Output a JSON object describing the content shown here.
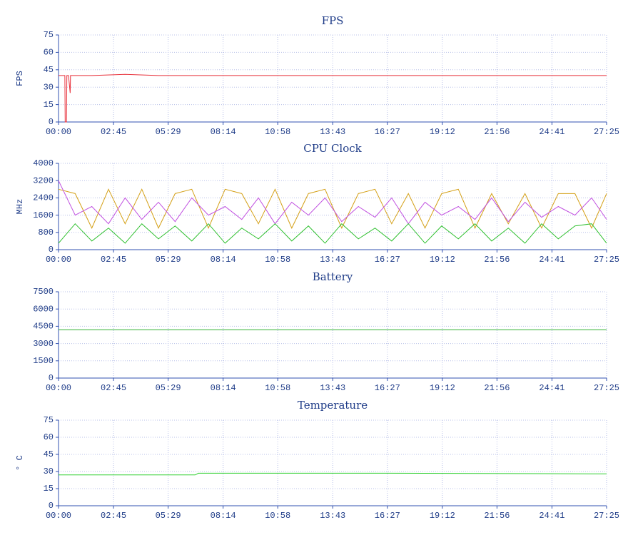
{
  "chart_data": [
    {
      "type": "line",
      "title": "FPS",
      "y_label": "FPS",
      "x": [
        0,
        15,
        19,
        20,
        24,
        25,
        30,
        35,
        36,
        40,
        45,
        100,
        200,
        300,
        400,
        500,
        600,
        700,
        800,
        900,
        1000,
        1100,
        1200,
        1300,
        1400,
        1500,
        1600,
        1645
      ],
      "series": [
        {
          "color": "#e8303a",
          "values": [
            40,
            40,
            40,
            0,
            0,
            40,
            40,
            25,
            40,
            40,
            40,
            40,
            41,
            40,
            40,
            40,
            40,
            40,
            40,
            40,
            40,
            40,
            40,
            40,
            40,
            40,
            40,
            40
          ]
        }
      ],
      "xlim": [
        0,
        1645
      ],
      "xticks": [
        {
          "value": 0,
          "label": "00:00"
        },
        {
          "value": 165,
          "label": "02:45"
        },
        {
          "value": 329,
          "label": "05:29"
        },
        {
          "value": 494,
          "label": "08:14"
        },
        {
          "value": 658,
          "label": "10:58"
        },
        {
          "value": 823,
          "label": "13:43"
        },
        {
          "value": 987,
          "label": "16:27"
        },
        {
          "value": 1152,
          "label": "19:12"
        },
        {
          "value": 1316,
          "label": "21:56"
        },
        {
          "value": 1481,
          "label": "24:41"
        },
        {
          "value": 1645,
          "label": "27:25"
        }
      ],
      "ylim": [
        0,
        75
      ],
      "yticks": [
        0,
        15,
        30,
        45,
        60,
        75
      ],
      "grid": true
    },
    {
      "type": "line",
      "title": "CPU Clock",
      "y_label": "MHz",
      "x": [
        0,
        50,
        100,
        150,
        200,
        250,
        300,
        350,
        400,
        450,
        500,
        550,
        600,
        650,
        700,
        750,
        800,
        850,
        900,
        950,
        1000,
        1050,
        1100,
        1150,
        1200,
        1250,
        1300,
        1350,
        1400,
        1450,
        1500,
        1550,
        1600,
        1645
      ],
      "series": [
        {
          "color": "#d4a017",
          "values": [
            2800,
            2600,
            1000,
            2800,
            1200,
            2800,
            1000,
            2600,
            2800,
            1000,
            2800,
            2600,
            1200,
            2800,
            1000,
            2600,
            2800,
            1000,
            2600,
            2800,
            1200,
            2600,
            1000,
            2600,
            2800,
            1000,
            2600,
            1200,
            2600,
            1000,
            2600,
            2600,
            1000,
            2600
          ]
        },
        {
          "color": "#c050e0",
          "values": [
            3200,
            1600,
            2000,
            1200,
            2400,
            1400,
            2200,
            1300,
            2400,
            1600,
            2000,
            1400,
            2400,
            1200,
            2200,
            1600,
            2400,
            1300,
            2000,
            1500,
            2400,
            1200,
            2200,
            1600,
            2000,
            1400,
            2400,
            1300,
            2200,
            1500,
            2000,
            1600,
            2400,
            1400
          ]
        },
        {
          "color": "#30c030",
          "values": [
            300,
            1200,
            400,
            1000,
            300,
            1200,
            500,
            1100,
            400,
            1200,
            300,
            1000,
            500,
            1200,
            400,
            1100,
            300,
            1200,
            500,
            1000,
            400,
            1200,
            300,
            1100,
            500,
            1200,
            400,
            1000,
            300,
            1200,
            500,
            1100,
            1200,
            300
          ]
        }
      ],
      "xlim": [
        0,
        1645
      ],
      "xticks": [
        {
          "value": 0,
          "label": "00:00"
        },
        {
          "value": 165,
          "label": "02:45"
        },
        {
          "value": 329,
          "label": "05:29"
        },
        {
          "value": 494,
          "label": "08:14"
        },
        {
          "value": 658,
          "label": "10:58"
        },
        {
          "value": 823,
          "label": "13:43"
        },
        {
          "value": 987,
          "label": "16:27"
        },
        {
          "value": 1152,
          "label": "19:12"
        },
        {
          "value": 1316,
          "label": "21:56"
        },
        {
          "value": 1481,
          "label": "24:41"
        },
        {
          "value": 1645,
          "label": "27:25"
        }
      ],
      "ylim": [
        0,
        4000
      ],
      "yticks": [
        0,
        800,
        1600,
        2400,
        3200,
        4000
      ],
      "grid": true
    },
    {
      "type": "line",
      "title": "Battery",
      "x": [
        0,
        1645
      ],
      "series": [
        {
          "color": "#30b030",
          "values": [
            4200,
            4200
          ]
        }
      ],
      "xlim": [
        0,
        1645
      ],
      "xticks": [
        {
          "value": 0,
          "label": "00:00"
        },
        {
          "value": 165,
          "label": "02:45"
        },
        {
          "value": 329,
          "label": "05:29"
        },
        {
          "value": 494,
          "label": "08:14"
        },
        {
          "value": 658,
          "label": "10:58"
        },
        {
          "value": 823,
          "label": "13:43"
        },
        {
          "value": 987,
          "label": "16:27"
        },
        {
          "value": 1152,
          "label": "19:12"
        },
        {
          "value": 1316,
          "label": "21:56"
        },
        {
          "value": 1481,
          "label": "24:41"
        },
        {
          "value": 1645,
          "label": "27:25"
        }
      ],
      "ylim": [
        0,
        7500
      ],
      "yticks": [
        0,
        1500,
        3000,
        4500,
        6000,
        7500
      ],
      "grid": true
    },
    {
      "type": "line",
      "title": "Temperature",
      "y_label": "° C",
      "x": [
        0,
        410,
        420,
        1000,
        1600,
        1645
      ],
      "series": [
        {
          "color": "#30d030",
          "values": [
            27,
            27,
            28.5,
            28.5,
            28,
            28
          ]
        }
      ],
      "xlim": [
        0,
        1645
      ],
      "xticks": [
        {
          "value": 0,
          "label": "00:00"
        },
        {
          "value": 165,
          "label": "02:45"
        },
        {
          "value": 329,
          "label": "05:29"
        },
        {
          "value": 494,
          "label": "08:14"
        },
        {
          "value": 658,
          "label": "10:58"
        },
        {
          "value": 823,
          "label": "13:43"
        },
        {
          "value": 987,
          "label": "16:27"
        },
        {
          "value": 1152,
          "label": "19:12"
        },
        {
          "value": 1316,
          "label": "21:56"
        },
        {
          "value": 1481,
          "label": "24:41"
        },
        {
          "value": 1645,
          "label": "27:25"
        }
      ],
      "ylim": [
        0,
        75
      ],
      "yticks": [
        0,
        15,
        30,
        45,
        60,
        75
      ],
      "grid": true
    }
  ]
}
